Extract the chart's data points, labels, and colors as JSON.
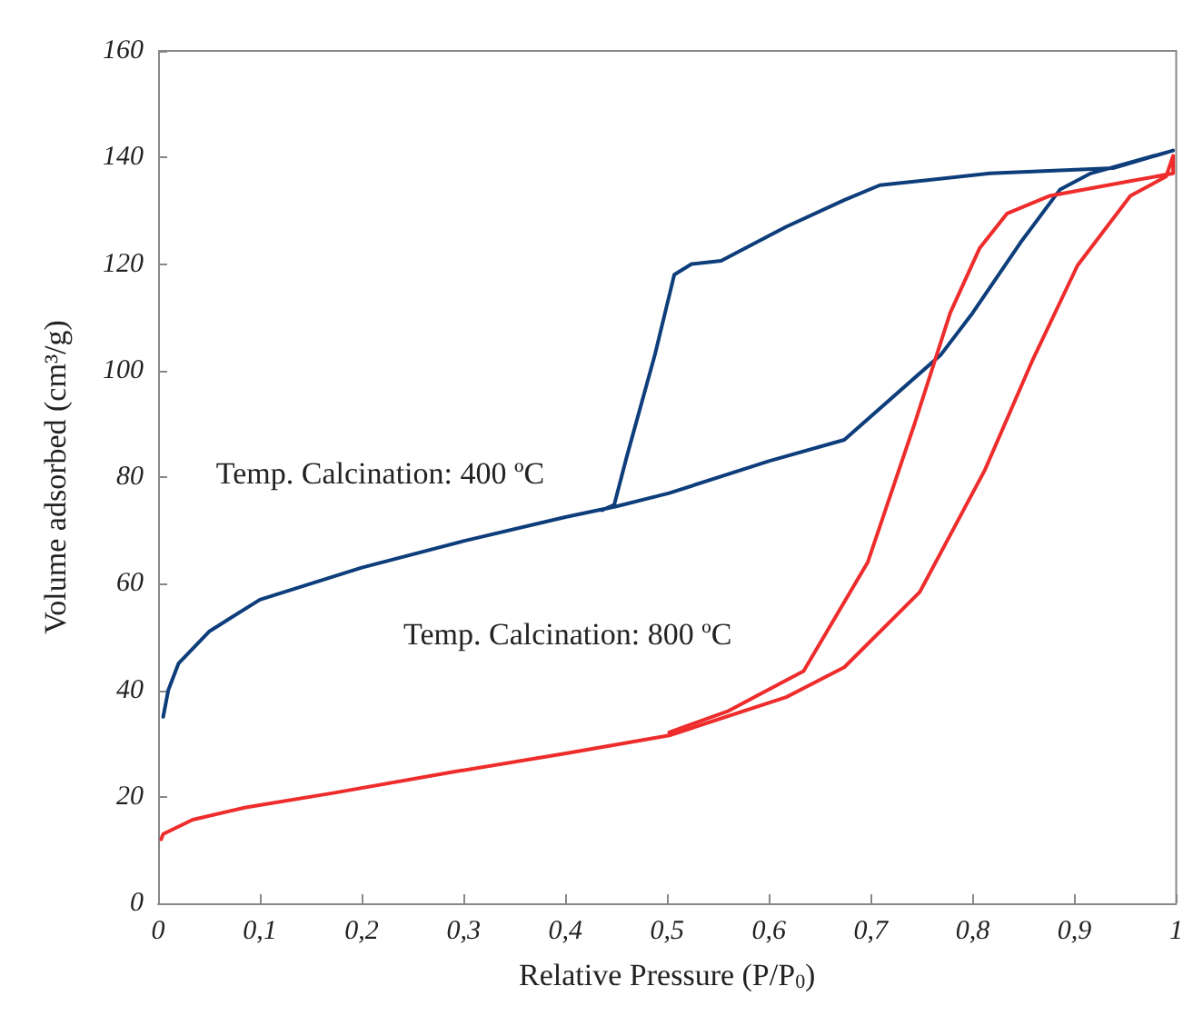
{
  "chart_data": {
    "type": "line",
    "xlabel": "Relative Pressure (P/P$_{0}$)",
    "ylabel": "Volume adsorbed (cm³/g)",
    "xlim": [
      0,
      1
    ],
    "ylim": [
      0,
      160
    ],
    "xticks": [
      0,
      {
        "value": 0.1,
        "label": "0,1"
      },
      {
        "value": 0.2,
        "label": "0,2"
      },
      {
        "value": 0.3,
        "label": "0,3"
      },
      {
        "value": 0.4,
        "label": "0,4"
      },
      {
        "value": 0.5,
        "label": "0,5"
      },
      {
        "value": 0.6,
        "label": "0,6"
      },
      {
        "value": 0.7,
        "label": "0,7"
      },
      {
        "value": 0.8,
        "label": "0,8"
      },
      {
        "value": 0.9,
        "label": "0,9"
      },
      1
    ],
    "yticks": [
      0,
      20,
      40,
      60,
      80,
      100,
      120,
      140,
      160
    ],
    "grid": false,
    "marker": "none",
    "line_style": "solid",
    "series": [
      {
        "color": "#0d3d7a",
        "x": [
          0.005,
          0.01,
          0.02,
          0.05,
          0.1,
          0.2,
          0.3,
          0.4,
          0.45,
          0.502,
          0.6,
          0.674,
          0.769,
          0.8,
          0.847,
          0.886,
          0.916,
          0.997,
          0.938,
          0.817,
          0.709,
          0.674,
          0.617,
          0.553,
          0.524,
          0.507,
          0.505,
          0.488,
          0.46,
          0.448,
          0.436
        ],
        "values": [
          35,
          40,
          45,
          51,
          57,
          63,
          68,
          72.5,
          74.5,
          77,
          83,
          87,
          103,
          110.8,
          124,
          134,
          137,
          141.3,
          138,
          137,
          134.8,
          132,
          127,
          120.6,
          120,
          118,
          116.4,
          103,
          83.6,
          74.8,
          73.8
        ]
      },
      {
        "color": "#ee2c2c",
        "x": [
          0.003,
          0.005,
          0.034,
          0.086,
          0.172,
          0.288,
          0.402,
          0.502,
          0.617,
          0.674,
          0.748,
          0.812,
          0.859,
          0.903,
          0.955,
          0.99,
          0.997,
          0.997,
          0.95,
          0.876,
          0.834,
          0.807,
          0.778,
          0.743,
          0.697,
          0.634,
          0.559,
          0.502
        ],
        "values": [
          12,
          13,
          15.7,
          18,
          20.7,
          24.6,
          28.2,
          31.5,
          38.7,
          44.3,
          58.4,
          81.3,
          102,
          119.7,
          132.8,
          136.4,
          140.3,
          137,
          135.4,
          132.8,
          129.5,
          123,
          110.8,
          90,
          64,
          43.6,
          36,
          32.1
        ]
      }
    ],
    "annotations": [
      "Temp. Calcination: 400 ºC",
      "Temp. Calcination: 800 ºC"
    ]
  }
}
